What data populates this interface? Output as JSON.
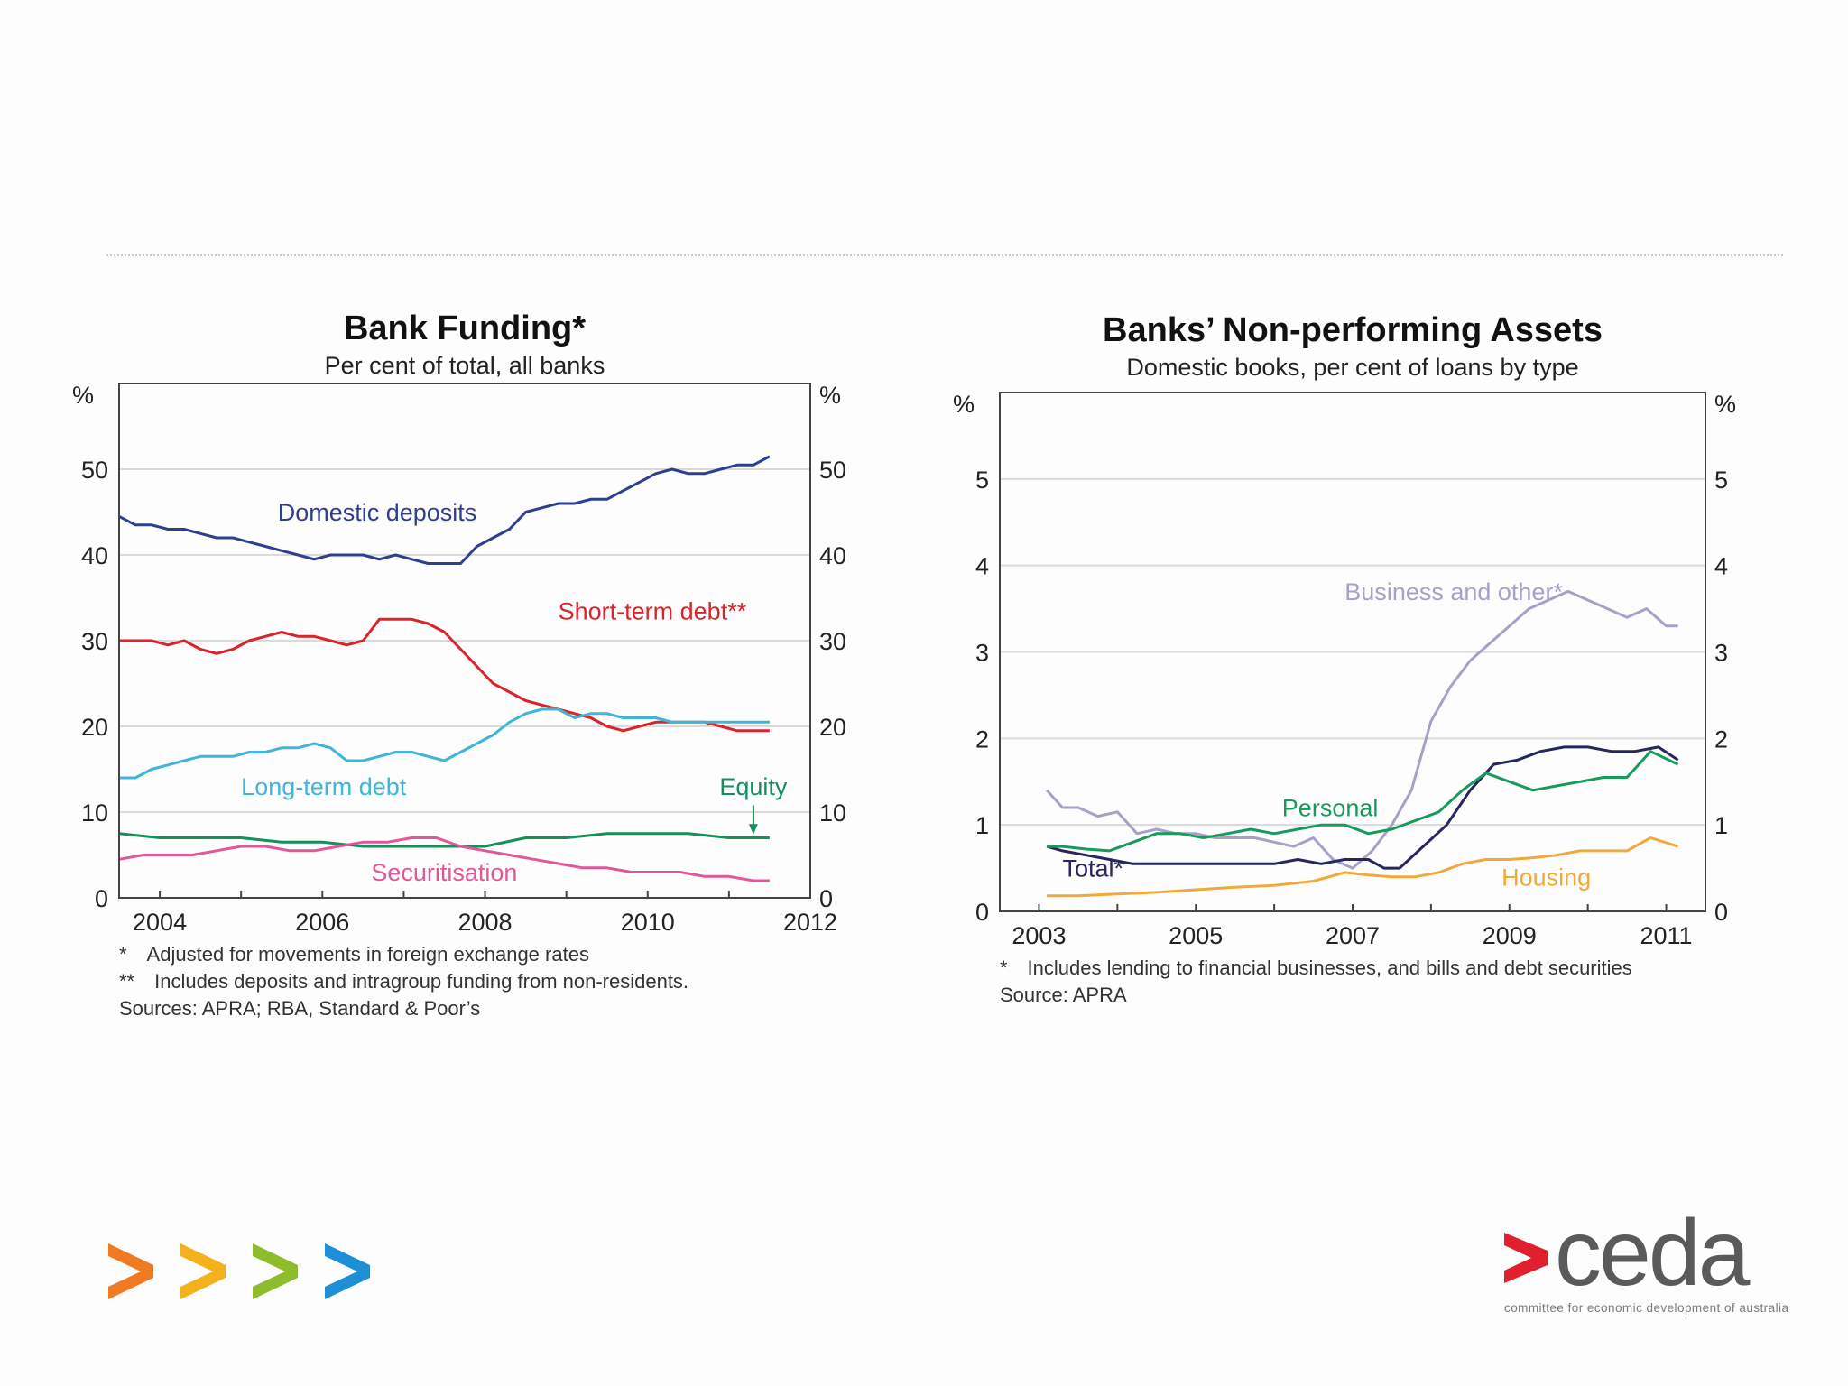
{
  "colors": {
    "domestic": "#2f3f8f",
    "shortterm": "#d9242b",
    "longterm": "#3fb6d8",
    "equity": "#14905a",
    "securitisation": "#e0579a",
    "business": "#a9a0c8",
    "total": "#25275e",
    "personal": "#169c5a",
    "housing": "#f2a93b",
    "grid": "#dadada",
    "frame": "#444444",
    "ceda_red": "#e0202f",
    "ceda_grey": "#5a5a5a",
    "arrow_orange": "#f07a22",
    "arrow_yellow": "#f3b21b",
    "arrow_green": "#8dbd2a",
    "arrow_blue": "#1c8fd6"
  },
  "chart_data": [
    {
      "type": "line",
      "title": "Bank Funding*",
      "subtitle": "Per cent of total, all banks",
      "ylabel_left": "%",
      "ylabel_right": "%",
      "xlim": [
        2003.5,
        2012
      ],
      "ylim": [
        0,
        60
      ],
      "yticks": [
        0,
        10,
        20,
        30,
        40,
        50
      ],
      "xticks": [
        2004,
        2006,
        2008,
        2010,
        2012
      ],
      "grid": true,
      "series": [
        {
          "name": "Domestic deposits",
          "color_key": "domestic",
          "x": [
            2003.5,
            2003.7,
            2003.9,
            2004.1,
            2004.3,
            2004.5,
            2004.7,
            2004.9,
            2005.1,
            2005.3,
            2005.5,
            2005.7,
            2005.9,
            2006.1,
            2006.3,
            2006.5,
            2006.7,
            2006.9,
            2007.1,
            2007.3,
            2007.5,
            2007.7,
            2007.9,
            2008.1,
            2008.3,
            2008.5,
            2008.7,
            2008.9,
            2009.1,
            2009.3,
            2009.5,
            2009.7,
            2009.9,
            2010.1,
            2010.3,
            2010.5,
            2010.7,
            2010.9,
            2011.1,
            2011.3,
            2011.5
          ],
          "y": [
            44.5,
            43.5,
            43.5,
            43,
            43,
            42.5,
            42,
            42,
            41.5,
            41,
            40.5,
            40,
            39.5,
            40,
            40,
            40,
            39.5,
            40,
            39.5,
            39,
            39,
            39,
            41,
            42,
            43,
            45,
            45.5,
            46,
            46,
            46.5,
            46.5,
            47.5,
            48.5,
            49.5,
            50,
            49.5,
            49.5,
            50,
            50.5,
            50.5,
            51.5
          ]
        },
        {
          "name": "Short-term debt**",
          "color_key": "shortterm",
          "x": [
            2003.5,
            2003.7,
            2003.9,
            2004.1,
            2004.3,
            2004.5,
            2004.7,
            2004.9,
            2005.1,
            2005.3,
            2005.5,
            2005.7,
            2005.9,
            2006.1,
            2006.3,
            2006.5,
            2006.7,
            2006.9,
            2007.1,
            2007.3,
            2007.5,
            2007.7,
            2007.9,
            2008.1,
            2008.3,
            2008.5,
            2008.7,
            2008.9,
            2009.1,
            2009.3,
            2009.5,
            2009.7,
            2009.9,
            2010.1,
            2010.3,
            2010.5,
            2010.7,
            2010.9,
            2011.1,
            2011.3,
            2011.5
          ],
          "y": [
            30,
            30,
            30,
            29.5,
            30,
            29,
            28.5,
            29,
            30,
            30.5,
            31,
            30.5,
            30.5,
            30,
            29.5,
            30,
            32.5,
            32.5,
            32.5,
            32,
            31,
            29,
            27,
            25,
            24,
            23,
            22.5,
            22,
            21.5,
            21,
            20,
            19.5,
            20,
            20.5,
            20.5,
            20.5,
            20.5,
            20,
            19.5,
            19.5,
            19.5
          ]
        },
        {
          "name": "Long-term debt",
          "color_key": "longterm",
          "x": [
            2003.5,
            2003.7,
            2003.9,
            2004.1,
            2004.3,
            2004.5,
            2004.7,
            2004.9,
            2005.1,
            2005.3,
            2005.5,
            2005.7,
            2005.9,
            2006.1,
            2006.3,
            2006.5,
            2006.7,
            2006.9,
            2007.1,
            2007.3,
            2007.5,
            2007.7,
            2007.9,
            2008.1,
            2008.3,
            2008.5,
            2008.7,
            2008.9,
            2009.1,
            2009.3,
            2009.5,
            2009.7,
            2009.9,
            2010.1,
            2010.3,
            2010.5,
            2010.7,
            2010.9,
            2011.1,
            2011.3,
            2011.5
          ],
          "y": [
            14,
            14,
            15,
            15.5,
            16,
            16.5,
            16.5,
            16.5,
            17,
            17,
            17.5,
            17.5,
            18,
            17.5,
            16,
            16,
            16.5,
            17,
            17,
            16.5,
            16,
            17,
            18,
            19,
            20.5,
            21.5,
            22,
            22,
            21,
            21.5,
            21.5,
            21,
            21,
            21,
            20.5,
            20.5,
            20.5,
            20.5,
            20.5,
            20.5,
            20.5
          ]
        },
        {
          "name": "Equity",
          "color_key": "equity",
          "x": [
            2003.5,
            2004,
            2004.5,
            2005,
            2005.5,
            2006,
            2006.5,
            2007,
            2007.5,
            2008,
            2008.5,
            2009,
            2009.5,
            2010,
            2010.5,
            2011,
            2011.5
          ],
          "y": [
            7.5,
            7,
            7,
            7,
            6.5,
            6.5,
            6,
            6,
            6,
            6,
            7,
            7,
            7.5,
            7.5,
            7.5,
            7,
            7
          ]
        },
        {
          "name": "Securitisation",
          "color_key": "securitisation",
          "x": [
            2003.5,
            2003.8,
            2004.1,
            2004.4,
            2004.7,
            2005,
            2005.3,
            2005.6,
            2005.9,
            2006.2,
            2006.5,
            2006.8,
            2007.1,
            2007.4,
            2007.7,
            2008,
            2008.3,
            2008.6,
            2008.9,
            2009.2,
            2009.5,
            2009.8,
            2010.1,
            2010.4,
            2010.7,
            2011,
            2011.3,
            2011.5
          ],
          "y": [
            4.5,
            5,
            5,
            5,
            5.5,
            6,
            6,
            5.5,
            5.5,
            6,
            6.5,
            6.5,
            7,
            7,
            6,
            5.5,
            5,
            4.5,
            4,
            3.5,
            3.5,
            3,
            3,
            3,
            2.5,
            2.5,
            2,
            2
          ]
        }
      ],
      "labels": {
        "domestic": "Domestic deposits",
        "shortterm": "Short-term debt**",
        "longterm": "Long-term debt",
        "equity": "Equity",
        "securitisation": "Securitisation"
      },
      "notes": [
        "* Adjusted for movements in foreign exchange rates",
        "** Includes deposits and intragroup funding from non-residents.",
        "Sources: APRA; RBA, Standard & Poor’s"
      ]
    },
    {
      "type": "line",
      "title": "Banks’ Non-performing Assets",
      "subtitle": "Domestic books, per cent of loans by type",
      "ylabel_left": "%",
      "ylabel_right": "%",
      "xlim": [
        2002.5,
        2011.5
      ],
      "ylim": [
        0,
        6
      ],
      "yticks": [
        0,
        1,
        2,
        3,
        4,
        5
      ],
      "xticks": [
        2003,
        2005,
        2007,
        2009,
        2011
      ],
      "grid": true,
      "series": [
        {
          "name": "Business and other*",
          "color_key": "business",
          "x": [
            2003.1,
            2003.3,
            2003.5,
            2003.75,
            2004,
            2004.25,
            2004.5,
            2004.75,
            2005,
            2005.25,
            2005.5,
            2005.75,
            2006,
            2006.25,
            2006.5,
            2006.75,
            2007,
            2007.25,
            2007.5,
            2007.75,
            2008,
            2008.25,
            2008.5,
            2008.75,
            2009,
            2009.25,
            2009.5,
            2009.75,
            2010,
            2010.25,
            2010.5,
            2010.75,
            2011,
            2011.15
          ],
          "y": [
            1.4,
            1.2,
            1.2,
            1.1,
            1.15,
            0.9,
            0.95,
            0.9,
            0.9,
            0.85,
            0.85,
            0.85,
            0.8,
            0.75,
            0.85,
            0.6,
            0.5,
            0.7,
            1.0,
            1.4,
            2.2,
            2.6,
            2.9,
            3.1,
            3.3,
            3.5,
            3.6,
            3.7,
            3.6,
            3.5,
            3.4,
            3.5,
            3.3,
            3.3
          ]
        },
        {
          "name": "Total*",
          "color_key": "total",
          "x": [
            2003.1,
            2003.3,
            2003.6,
            2003.9,
            2004.2,
            2004.5,
            2004.8,
            2005.1,
            2005.4,
            2005.7,
            2006,
            2006.3,
            2006.6,
            2006.9,
            2007.2,
            2007.4,
            2007.6,
            2007.9,
            2008.2,
            2008.5,
            2008.8,
            2009.1,
            2009.4,
            2009.7,
            2010,
            2010.3,
            2010.6,
            2010.9,
            2011.15
          ],
          "y": [
            0.75,
            0.7,
            0.65,
            0.6,
            0.55,
            0.55,
            0.55,
            0.55,
            0.55,
            0.55,
            0.55,
            0.6,
            0.55,
            0.6,
            0.6,
            0.5,
            0.5,
            0.75,
            1.0,
            1.4,
            1.7,
            1.75,
            1.85,
            1.9,
            1.9,
            1.85,
            1.85,
            1.9,
            1.75
          ]
        },
        {
          "name": "Personal",
          "color_key": "personal",
          "x": [
            2003.1,
            2003.3,
            2003.6,
            2003.9,
            2004.2,
            2004.5,
            2004.8,
            2005.1,
            2005.4,
            2005.7,
            2006,
            2006.3,
            2006.6,
            2006.9,
            2007.2,
            2007.5,
            2007.8,
            2008.1,
            2008.4,
            2008.7,
            2009,
            2009.3,
            2009.6,
            2009.9,
            2010.2,
            2010.5,
            2010.8,
            2011.15
          ],
          "y": [
            0.75,
            0.75,
            0.72,
            0.7,
            0.8,
            0.9,
            0.9,
            0.85,
            0.9,
            0.95,
            0.9,
            0.95,
            1.0,
            1.0,
            0.9,
            0.95,
            1.05,
            1.15,
            1.4,
            1.6,
            1.5,
            1.4,
            1.45,
            1.5,
            1.55,
            1.55,
            1.85,
            1.7
          ]
        },
        {
          "name": "Housing",
          "color_key": "housing",
          "x": [
            2003.1,
            2003.5,
            2004,
            2004.5,
            2005,
            2005.5,
            2006,
            2006.5,
            2006.9,
            2007.2,
            2007.5,
            2007.8,
            2008.1,
            2008.4,
            2008.7,
            2009,
            2009.3,
            2009.6,
            2009.9,
            2010.2,
            2010.5,
            2010.8,
            2011.15
          ],
          "y": [
            0.18,
            0.18,
            0.2,
            0.22,
            0.25,
            0.28,
            0.3,
            0.35,
            0.45,
            0.42,
            0.4,
            0.4,
            0.45,
            0.55,
            0.6,
            0.6,
            0.62,
            0.65,
            0.7,
            0.7,
            0.7,
            0.85,
            0.75
          ]
        }
      ],
      "labels": {
        "business": "Business and other*",
        "total": "Total*",
        "personal": "Personal",
        "housing": "Housing"
      },
      "notes": [
        "* Includes lending to financial businesses, and bills and debt securities",
        "Source: APRA"
      ]
    }
  ],
  "footer": {
    "logo_text": "ceda",
    "tagline": "committee for economic development of australia"
  }
}
